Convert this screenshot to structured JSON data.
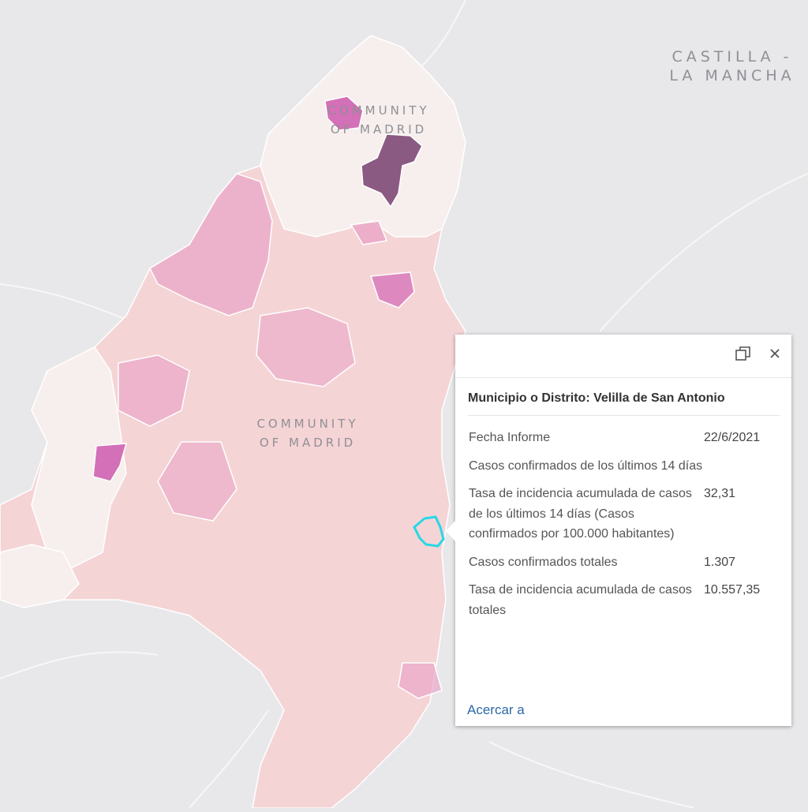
{
  "map": {
    "labels": {
      "castilla_line1": "CASTILLA -",
      "castilla_line2": "LA MANCHA",
      "madrid_north_line1": "COMMUNITY",
      "madrid_north_line2": "OF MADRID",
      "madrid_center_line1": "COMMUNITY",
      "madrid_center_line2": "OF MADRID"
    },
    "colors": {
      "background": "#e8e8ea",
      "low": "#f6efed",
      "mid": "#f5d4d5",
      "high": "#eaa7c7",
      "very_high": "#d470b7",
      "max": "#8a5a82",
      "selected_outline": "#26d8e6"
    }
  },
  "popup": {
    "title": "Municipio o Distrito: Velilla de San Antonio",
    "maximize_icon": "maximize-icon",
    "close_icon": "close-icon",
    "rows": [
      {
        "key": "Fecha Informe",
        "value": "22/6/2021"
      },
      {
        "key": "Casos confirmados de los últimos 14 días",
        "value": ""
      },
      {
        "key": "Tasa de incidencia acumulada de casos de los últimos 14 días (Casos confirmados por 100.000 habitantes)",
        "value": "32,31"
      },
      {
        "key": "Casos confirmados totales",
        "value": "1.307"
      },
      {
        "key": "Tasa de incidencia acumulada de casos totales",
        "value": "10.557,35"
      }
    ],
    "zoom_link": "Acercar a"
  }
}
